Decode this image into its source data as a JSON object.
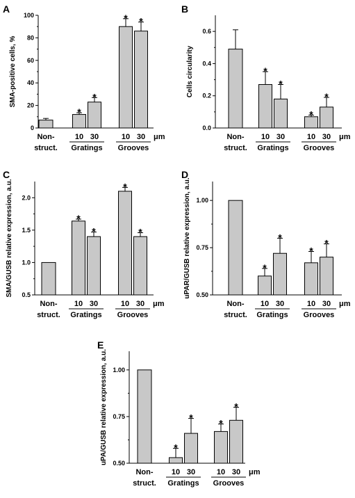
{
  "chart_data": [
    {
      "panel": "A",
      "type": "bar",
      "ylabel": "SMA-positive cells, %",
      "ylim": [
        0,
        100
      ],
      "yticks": [
        0,
        20,
        40,
        60,
        80,
        100
      ],
      "ytick_labels": [
        "0",
        "20",
        "40",
        "60",
        "80",
        "100"
      ],
      "groups": [
        {
          "label": "Non-\nstruct.",
          "bars": [
            {
              "label": "",
              "value": 7,
              "error": 1.5,
              "star": false
            }
          ]
        },
        {
          "label": "Gratings",
          "bars": [
            {
              "label": "10",
              "value": 12,
              "error": 1.5,
              "star": true
            },
            {
              "label": "30",
              "value": 23,
              "error": 4,
              "star": true
            }
          ]
        },
        {
          "label": "Grooves",
          "bars": [
            {
              "label": "10",
              "value": 90,
              "error": 7,
              "star": true
            },
            {
              "label": "30",
              "value": 86,
              "error": 8,
              "star": true
            }
          ]
        }
      ],
      "unit": "μm"
    },
    {
      "panel": "B",
      "type": "bar",
      "ylabel": "Cells circularity",
      "ylim": [
        0,
        0.7
      ],
      "yticks": [
        0,
        0.2,
        0.4,
        0.6
      ],
      "ytick_labels": [
        "0.0",
        "0.2",
        "0.4",
        "0.6"
      ],
      "groups": [
        {
          "label": "Non-\nstruct.",
          "bars": [
            {
              "label": "",
              "value": 0.49,
              "error": 0.12,
              "star": false
            }
          ]
        },
        {
          "label": "Gratings",
          "bars": [
            {
              "label": "10",
              "value": 0.27,
              "error": 0.08,
              "star": true
            },
            {
              "label": "30",
              "value": 0.18,
              "error": 0.09,
              "star": true
            }
          ]
        },
        {
          "label": "Grooves",
          "bars": [
            {
              "label": "10",
              "value": 0.07,
              "error": 0.01,
              "star": true
            },
            {
              "label": "30",
              "value": 0.13,
              "error": 0.06,
              "star": true
            }
          ]
        }
      ],
      "unit": "μm"
    },
    {
      "panel": "C",
      "type": "bar",
      "ylabel": "SMA/GUSB relative expression, a.u.",
      "ylim": [
        0.5,
        2.25
      ],
      "yticks": [
        0.5,
        1.0,
        1.5,
        2.0
      ],
      "ytick_labels": [
        "0.5",
        "1.0",
        "1.5",
        "2.0"
      ],
      "groups": [
        {
          "label": "Non-\nstruct.",
          "bars": [
            {
              "label": "",
              "value": 1.0,
              "error": 0,
              "star": false
            }
          ]
        },
        {
          "label": "Gratings",
          "bars": [
            {
              "label": "10",
              "value": 1.64,
              "error": 0.03,
              "star": true
            },
            {
              "label": "30",
              "value": 1.4,
              "error": 0.07,
              "star": true
            }
          ]
        },
        {
          "label": "Grooves",
          "bars": [
            {
              "label": "10",
              "value": 2.1,
              "error": 0.06,
              "star": true
            },
            {
              "label": "30",
              "value": 1.4,
              "error": 0.06,
              "star": true
            }
          ]
        }
      ],
      "unit": "μm"
    },
    {
      "panel": "D",
      "type": "bar",
      "ylabel": "uPAR/GUSB relative expression, a.u.",
      "ylim": [
        0.5,
        1.1
      ],
      "yticks": [
        0.5,
        0.75,
        1.0
      ],
      "ytick_labels": [
        "0.50",
        "0.75",
        "1.00"
      ],
      "groups": [
        {
          "label": "Non-\nstruct.",
          "bars": [
            {
              "label": "",
              "value": 1.0,
              "error": 0,
              "star": false
            }
          ]
        },
        {
          "label": "Gratings",
          "bars": [
            {
              "label": "10",
              "value": 0.6,
              "error": 0.04,
              "star": true
            },
            {
              "label": "30",
              "value": 0.72,
              "error": 0.08,
              "star": true
            }
          ]
        },
        {
          "label": "Grooves",
          "bars": [
            {
              "label": "10",
              "value": 0.67,
              "error": 0.06,
              "star": true
            },
            {
              "label": "30",
              "value": 0.7,
              "error": 0.07,
              "star": true
            }
          ]
        }
      ],
      "unit": "μm"
    },
    {
      "panel": "E",
      "type": "bar",
      "ylabel": "uPA/GUSB relative expression, a.u.",
      "ylim": [
        0.5,
        1.1
      ],
      "yticks": [
        0.5,
        0.75,
        1.0
      ],
      "ytick_labels": [
        "0.50",
        "0.75",
        "1.00"
      ],
      "groups": [
        {
          "label": "Non-\nstruct.",
          "bars": [
            {
              "label": "",
              "value": 1.0,
              "error": 0,
              "star": false
            }
          ]
        },
        {
          "label": "Gratings",
          "bars": [
            {
              "label": "10",
              "value": 0.53,
              "error": 0.05,
              "star": true
            },
            {
              "label": "30",
              "value": 0.66,
              "error": 0.08,
              "star": true
            }
          ]
        },
        {
          "label": "Grooves",
          "bars": [
            {
              "label": "10",
              "value": 0.67,
              "error": 0.04,
              "star": true
            },
            {
              "label": "30",
              "value": 0.73,
              "error": 0.07,
              "star": true
            }
          ]
        }
      ],
      "unit": "μm"
    }
  ],
  "style": {
    "bar_fill": "#c8c8c8",
    "stroke": "#000000"
  }
}
